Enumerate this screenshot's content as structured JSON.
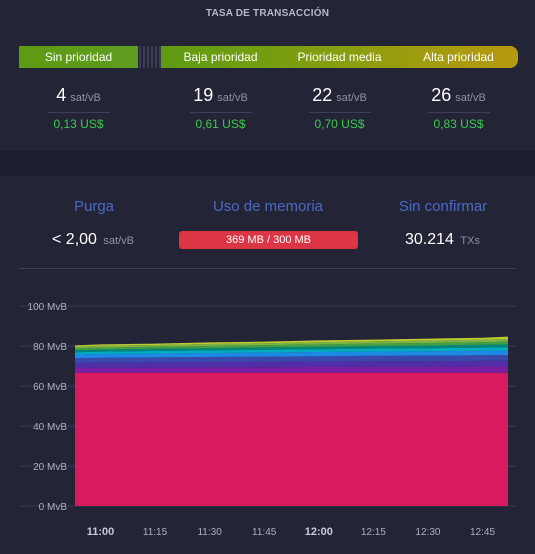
{
  "header": {
    "title": "TASA DE TRANSACCIÓN"
  },
  "fees": {
    "priorities": [
      "Sin prioridad",
      "Baja prioridad",
      "Prioridad media",
      "Alta prioridad"
    ],
    "unit": "sat/vB",
    "values": [
      {
        "rate": "4",
        "usd": "0,13 US$"
      },
      {
        "rate": "19",
        "usd": "0,61 US$"
      },
      {
        "rate": "22",
        "usd": "0,70 US$"
      },
      {
        "rate": "26",
        "usd": "0,83 US$"
      }
    ],
    "colors": {
      "priority_bar": "#5e9a12",
      "priority_high": "#b6990f",
      "usd_text": "#3bcc49"
    }
  },
  "mempool": {
    "purge": {
      "label": "Purga",
      "value": "< 2,00",
      "unit": "sat/vB"
    },
    "memory": {
      "label": "Uso de memoria",
      "value": "369 MB / 300 MB",
      "color": "#dc3545"
    },
    "unconfirmed": {
      "label": "Sin confirmar",
      "value": "30.214",
      "unit": "TXs"
    },
    "title_color": "#4a68c6"
  },
  "chart_data": {
    "type": "area",
    "stacked": true,
    "x": [
      "10:53",
      "11:00",
      "11:15",
      "11:30",
      "11:45",
      "12:00",
      "12:15",
      "12:30",
      "12:45",
      "12:52"
    ],
    "xticks": [
      "11:00",
      "11:15",
      "11:30",
      "11:45",
      "12:00",
      "12:15",
      "12:30",
      "12:45"
    ],
    "xticks_bold": [
      "11:00",
      "12:00"
    ],
    "yticks": [
      "0 MvB",
      "20 MvB",
      "40 MvB",
      "60 MvB",
      "80 MvB",
      "100 MvB"
    ],
    "ylim": [
      0,
      100
    ],
    "grid": true,
    "series": [
      {
        "color": "#d81b60",
        "values": [
          66.6,
          66.6,
          66.6,
          66.6,
          66.6,
          66.6,
          66.6,
          66.6,
          66.6,
          66.6
        ]
      },
      {
        "color": "#7b1fa2",
        "values": [
          2.4,
          2.5,
          2.6,
          2.7,
          2.8,
          2.9,
          3.0,
          3.0,
          3.1,
          3.1
        ]
      },
      {
        "color": "#512da8",
        "values": [
          2.5,
          2.5,
          2.6,
          2.6,
          2.7,
          2.7,
          2.8,
          2.8,
          2.9,
          2.9
        ]
      },
      {
        "color": "#3949ab",
        "values": [
          2.4,
          2.5,
          2.5,
          2.6,
          2.6,
          2.7,
          2.7,
          2.8,
          2.8,
          2.9
        ]
      },
      {
        "color": "#1e88e5",
        "values": [
          1.8,
          1.9,
          1.9,
          2.0,
          2.0,
          2.1,
          2.1,
          2.2,
          2.2,
          2.3
        ]
      },
      {
        "color": "#00acc1",
        "values": [
          1.2,
          1.2,
          1.3,
          1.3,
          1.4,
          1.4,
          1.5,
          1.5,
          1.6,
          1.6
        ]
      },
      {
        "color": "#00897b",
        "values": [
          1.0,
          1.0,
          1.1,
          1.1,
          1.2,
          1.2,
          1.3,
          1.3,
          1.4,
          1.4
        ]
      },
      {
        "color": "#43a047",
        "values": [
          1.0,
          1.0,
          1.0,
          1.1,
          1.1,
          1.2,
          1.2,
          1.3,
          1.3,
          1.4
        ]
      },
      {
        "color": "#7cb342",
        "values": [
          0.8,
          0.9,
          0.9,
          1.0,
          1.0,
          1.1,
          1.1,
          1.2,
          1.2,
          1.3
        ]
      },
      {
        "color": "#c0ca33",
        "values": [
          0.6,
          0.7,
          0.7,
          0.8,
          0.8,
          0.9,
          0.9,
          1.0,
          1.0,
          1.2
        ]
      }
    ]
  }
}
